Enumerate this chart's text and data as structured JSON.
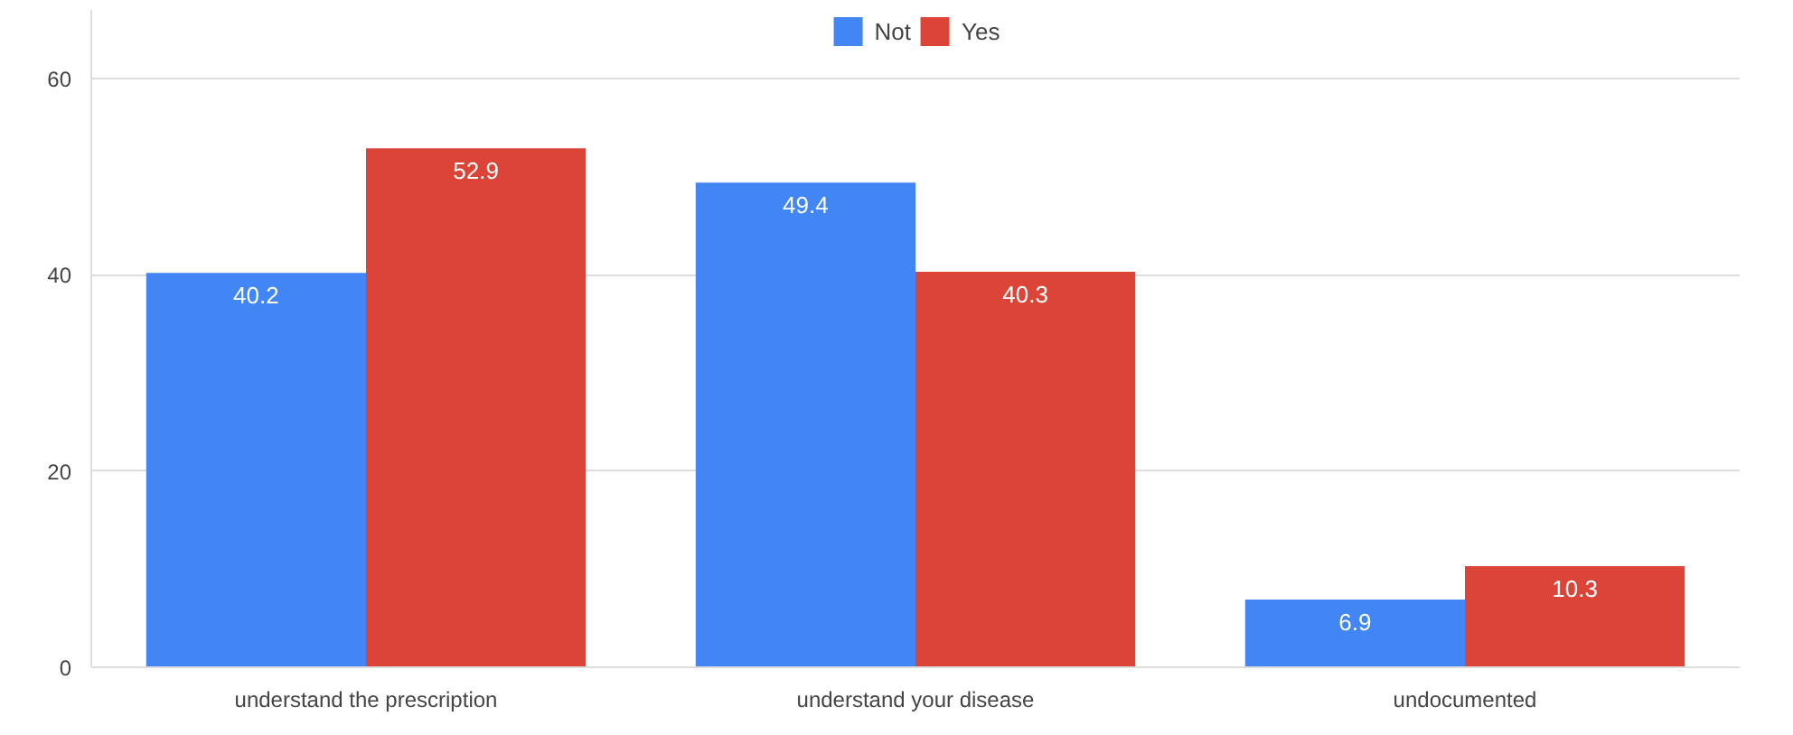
{
  "chart_data": {
    "type": "bar",
    "categories": [
      "understand the prescription",
      "understand your disease",
      "undocumented"
    ],
    "series": [
      {
        "name": "Not",
        "color": "#4285f4",
        "values": [
          40.2,
          49.4,
          6.9
        ]
      },
      {
        "name": "Yes",
        "color": "#db4437",
        "values": [
          52.9,
          40.3,
          10.3
        ]
      }
    ],
    "ylim": [
      0,
      67
    ],
    "yticks": [
      0,
      20,
      40,
      60
    ],
    "grid": "y",
    "legend": "top",
    "data_labels": true
  }
}
